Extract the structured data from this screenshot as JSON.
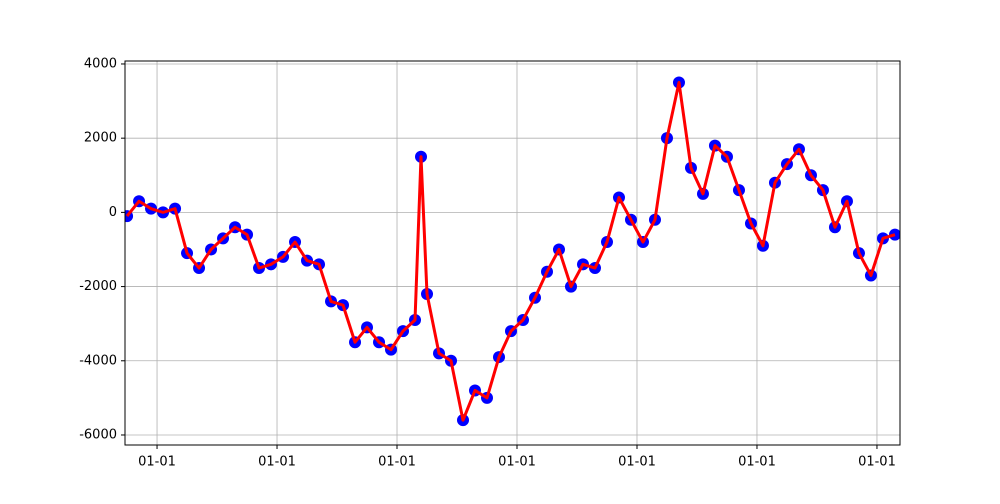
{
  "chart_data": {
    "type": "line",
    "x": [
      -0.25,
      -0.15,
      -0.05,
      0.05,
      0.15,
      0.25,
      0.35,
      0.45,
      0.55,
      0.65,
      0.75,
      0.85,
      0.95,
      1.05,
      1.15,
      1.25,
      1.35,
      1.45,
      1.55,
      1.65,
      1.75,
      1.85,
      1.95,
      2.05,
      2.15,
      2.2,
      2.25,
      2.35,
      2.45,
      2.55,
      2.65,
      2.75,
      2.85,
      2.95,
      3.05,
      3.15,
      3.25,
      3.35,
      3.45,
      3.55,
      3.65,
      3.75,
      3.85,
      3.95,
      4.05,
      4.15,
      4.25,
      4.35,
      4.45,
      4.55,
      4.65,
      4.75,
      4.85,
      4.95,
      5.05,
      5.15,
      5.25,
      5.35,
      5.45,
      5.55,
      5.65,
      5.75,
      5.85,
      5.95,
      6.05,
      6.15
    ],
    "series": [
      {
        "values": [
          -100,
          300,
          100,
          0,
          100,
          -1100,
          -1500,
          -1000,
          -700,
          -400,
          -600,
          -1500,
          -1400,
          -1200,
          -800,
          -1300,
          -1400,
          -2400,
          -2500,
          -3500,
          -3100,
          -3500,
          -3700,
          -3200,
          -2900,
          1500,
          -2200,
          -3800,
          -4000,
          -5600,
          -4800,
          -5000,
          -3900,
          -3200,
          -2900,
          -2300,
          -1600,
          -1000,
          -2000,
          -1400,
          -1500,
          -800,
          400,
          -200,
          -800,
          -200,
          2000,
          3500,
          1200,
          500,
          1800,
          1500,
          600,
          -300,
          -900,
          800,
          1300,
          1700,
          1000,
          600,
          -400,
          300,
          -1100,
          -1700,
          -700,
          -600
        ],
        "color": "#ff0000",
        "marker_color": "#0000ff"
      }
    ],
    "xlim": [
      -0.267,
      6.192
    ],
    "xticks": [
      {
        "value": 0,
        "label": "01-01"
      },
      {
        "value": 1,
        "label": "01-01"
      },
      {
        "value": 2,
        "label": "01-01"
      },
      {
        "value": 3,
        "label": "01-01"
      },
      {
        "value": 4,
        "label": "01-01"
      },
      {
        "value": 5,
        "label": "01-01"
      },
      {
        "value": 6,
        "label": "01-01"
      }
    ],
    "ylim": [
      -6270,
      4080
    ],
    "yticks": [
      -6000,
      -4000,
      -2000,
      0,
      2000,
      4000
    ],
    "grid": true
  }
}
